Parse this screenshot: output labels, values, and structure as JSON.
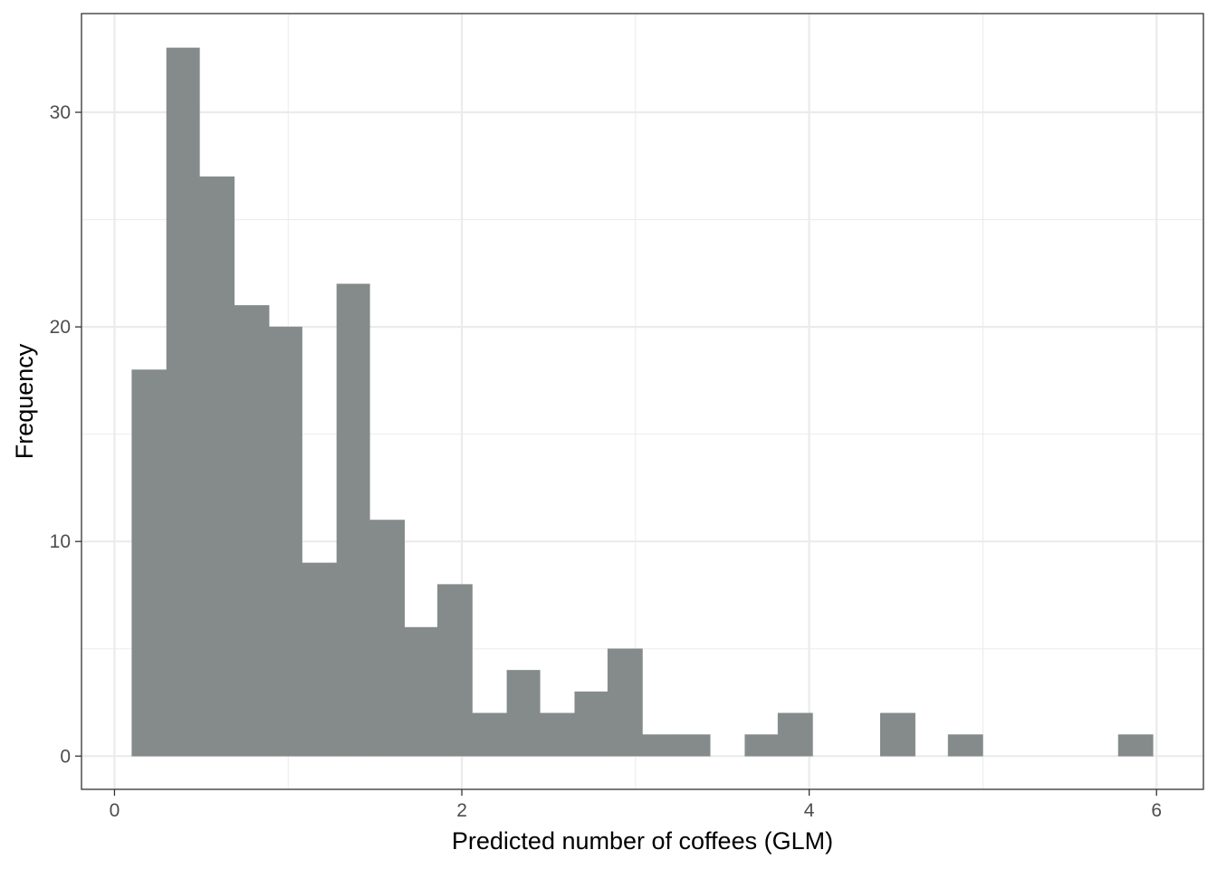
{
  "chart_data": {
    "type": "bar",
    "subtype": "histogram",
    "title": "",
    "xlabel": "Predicted number of coffees (GLM)",
    "ylabel": "Frequency",
    "xlim": [
      -0.19,
      6.27
    ],
    "ylim": [
      -1.55,
      34.6
    ],
    "x_ticks": [
      0,
      2,
      4,
      6
    ],
    "x_tick_labels": [
      "0",
      "2",
      "4",
      "6"
    ],
    "y_ticks": [
      0,
      10,
      20,
      30
    ],
    "y_tick_labels": [
      "0",
      "10",
      "20",
      "30"
    ],
    "x_minor_gridlines": [
      1,
      3,
      5
    ],
    "y_minor_gridlines": [
      5,
      15,
      25
    ],
    "grid": true,
    "bar_color": "#848b8a",
    "bins": [
      {
        "x0": 0.1,
        "x1": 0.3,
        "count": 18
      },
      {
        "x0": 0.3,
        "x1": 0.49,
        "count": 33
      },
      {
        "x0": 0.49,
        "x1": 0.69,
        "count": 27
      },
      {
        "x0": 0.69,
        "x1": 0.89,
        "count": 21
      },
      {
        "x0": 0.89,
        "x1": 1.08,
        "count": 20
      },
      {
        "x0": 1.08,
        "x1": 1.28,
        "count": 9
      },
      {
        "x0": 1.28,
        "x1": 1.47,
        "count": 22
      },
      {
        "x0": 1.47,
        "x1": 1.67,
        "count": 11
      },
      {
        "x0": 1.67,
        "x1": 1.86,
        "count": 6
      },
      {
        "x0": 1.86,
        "x1": 2.06,
        "count": 8
      },
      {
        "x0": 2.06,
        "x1": 2.26,
        "count": 2
      },
      {
        "x0": 2.26,
        "x1": 2.45,
        "count": 4
      },
      {
        "x0": 2.45,
        "x1": 2.65,
        "count": 2
      },
      {
        "x0": 2.65,
        "x1": 2.84,
        "count": 3
      },
      {
        "x0": 2.84,
        "x1": 3.04,
        "count": 5
      },
      {
        "x0": 3.04,
        "x1": 3.24,
        "count": 1
      },
      {
        "x0": 3.24,
        "x1": 3.43,
        "count": 1
      },
      {
        "x0": 3.43,
        "x1": 3.63,
        "count": 0
      },
      {
        "x0": 3.63,
        "x1": 3.82,
        "count": 1
      },
      {
        "x0": 3.82,
        "x1": 4.02,
        "count": 2
      },
      {
        "x0": 4.02,
        "x1": 4.21,
        "count": 0
      },
      {
        "x0": 4.21,
        "x1": 4.41,
        "count": 0
      },
      {
        "x0": 4.41,
        "x1": 4.61,
        "count": 2
      },
      {
        "x0": 4.61,
        "x1": 4.8,
        "count": 0
      },
      {
        "x0": 4.8,
        "x1": 5.0,
        "count": 1
      },
      {
        "x0": 5.0,
        "x1": 5.19,
        "count": 0
      },
      {
        "x0": 5.19,
        "x1": 5.39,
        "count": 0
      },
      {
        "x0": 5.39,
        "x1": 5.59,
        "count": 0
      },
      {
        "x0": 5.59,
        "x1": 5.78,
        "count": 0
      },
      {
        "x0": 5.78,
        "x1": 5.98,
        "count": 1
      }
    ]
  }
}
